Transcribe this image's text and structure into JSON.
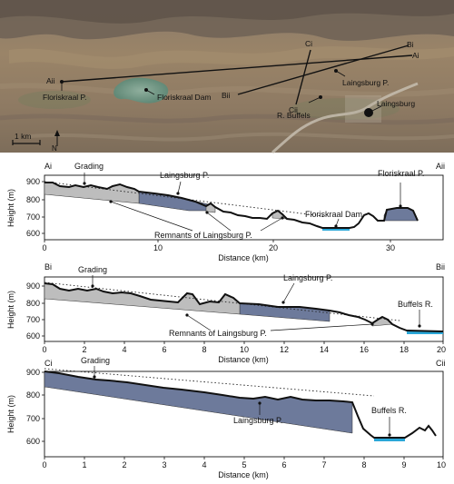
{
  "map": {
    "labels": {
      "ai": "Ai",
      "aii": "Aii",
      "bi": "Bi",
      "bii": "Bii",
      "ci": "Ci",
      "cii": "Cii",
      "floriskraal_p": "Floriskraal P.",
      "floriskraal_dam": "Floriskraal Dam",
      "laingsburg_p": "Laingsburg P.",
      "r_buffels": "R. Buffels",
      "laingsburg": "Laingsburg"
    },
    "scale_label": "1 km",
    "north_label": "N"
  },
  "panels": [
    {
      "start_label": "Ai",
      "end_label": "Aii",
      "ylabel": "Height (m)",
      "xlabel": "Distance (km)",
      "yticks": [
        "900",
        "800",
        "700",
        "600"
      ],
      "xticks": [
        "0",
        "10",
        "20",
        "30"
      ],
      "annotations": {
        "grading": "Grading",
        "laingsburg_p": "Laingsburg P.",
        "floriskraal_dam": "Floriskraal Dam",
        "floriskraal_p": "Floriskraal P.",
        "remnants": "Remnants of Laingsburg P."
      }
    },
    {
      "start_label": "Bi",
      "end_label": "Bii",
      "ylabel": "Height (m)",
      "xlabel": "Distance (km)",
      "yticks": [
        "900",
        "800",
        "700",
        "600"
      ],
      "xticks": [
        "0",
        "2",
        "4",
        "6",
        "8",
        "10",
        "12",
        "14",
        "16",
        "18",
        "20"
      ],
      "annotations": {
        "grading": "Grading",
        "laingsburg_p": "Laingsburg P.",
        "buffels_r": "Buffels R.",
        "remnants": "Remnants of Laingsburg P."
      }
    },
    {
      "start_label": "Ci",
      "end_label": "Cii",
      "ylabel": "Height (m)",
      "xlabel": "Distance (km)",
      "yticks": [
        "900",
        "800",
        "700",
        "600"
      ],
      "xticks": [
        "0",
        "1",
        "2",
        "3",
        "4",
        "5",
        "6",
        "7",
        "8",
        "9",
        "10"
      ],
      "annotations": {
        "grading": "Grading",
        "laingsburg_p": "Laingsburg P.",
        "buffels_r": "Buffels R."
      }
    }
  ],
  "colors": {
    "pediment_blue": "#6d7a9b",
    "remnant_grey": "#bdbdbd",
    "water": "#2aa7d8",
    "profile": "#111111"
  }
}
